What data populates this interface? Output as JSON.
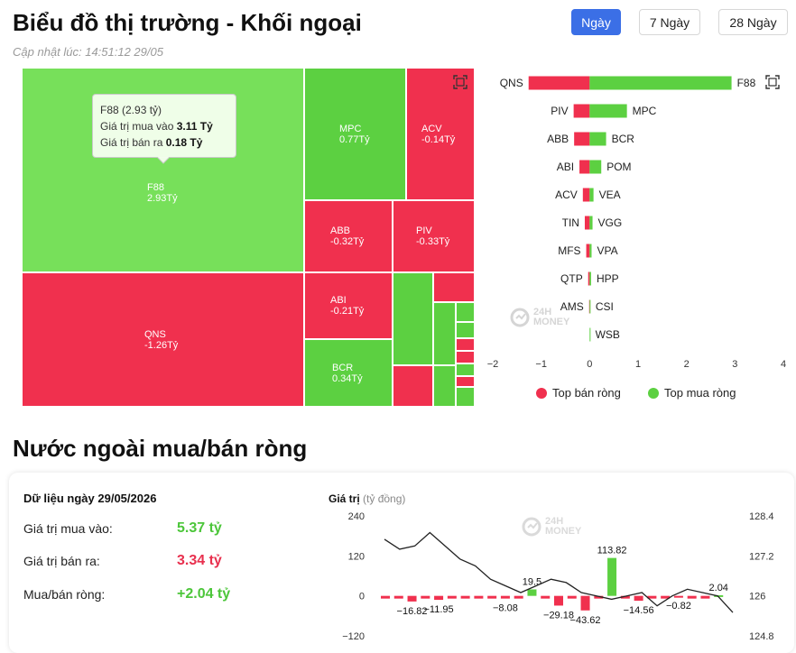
{
  "header": {
    "title": "Biểu đồ thị trường - Khối ngoại",
    "updated": "Cập nhật lúc: 14:51:12 29/05",
    "tabs": [
      {
        "label": "Ngày",
        "active": true
      },
      {
        "label": "7 Ngày",
        "active": false
      },
      {
        "label": "28 Ngày",
        "active": false
      }
    ]
  },
  "treemap": {
    "tiles": [
      {
        "ticker": "F88",
        "value": "2.93Tỷ"
      },
      {
        "ticker": "MPC",
        "value": "0.77Tỷ"
      },
      {
        "ticker": "ACV",
        "value": "-0.14Tỷ"
      },
      {
        "ticker": "ABB",
        "value": "-0.32Tỷ"
      },
      {
        "ticker": "PIV",
        "value": "-0.33Tỷ"
      },
      {
        "ticker": "QNS",
        "value": "-1.26Tỷ"
      },
      {
        "ticker": "ABI",
        "value": "-0.21Tỷ"
      },
      {
        "ticker": "BCR",
        "value": "0.34Tỷ"
      }
    ],
    "tooltip": {
      "title": "F88 (2.93 tỷ)",
      "buy_label": "Giá trị mua vào",
      "buy_value": "3.11 Tỷ",
      "sell_label": "Giá trị bán ra",
      "sell_value": "0.18 Tỷ"
    }
  },
  "chart_data": [
    {
      "type": "bar",
      "orientation": "horizontal",
      "sell_tickers": [
        "QNS",
        "PIV",
        "ABB",
        "ABI",
        "ACV",
        "TIN",
        "MFS",
        "QTP",
        "AMS",
        ""
      ],
      "sell_values": [
        -1.26,
        -0.33,
        -0.32,
        -0.21,
        -0.14,
        -0.1,
        -0.07,
        -0.03,
        -0.01,
        0
      ],
      "buy_tickers": [
        "F88",
        "MPC",
        "BCR",
        "POM",
        "VEA",
        "VGG",
        "VPA",
        "HPP",
        "CSI",
        "WSB"
      ],
      "buy_values": [
        2.93,
        0.77,
        0.34,
        0.24,
        0.08,
        0.06,
        0.04,
        0.03,
        0.01,
        0.005
      ],
      "x_ticks": [
        "−2",
        "−1",
        "0",
        "1",
        "2",
        "3",
        "4"
      ],
      "xlim": [
        -2,
        4
      ],
      "legend": [
        {
          "name": "Top bán ròng",
          "color": "#f0304e"
        },
        {
          "name": "Top mua ròng",
          "color": "#5cd041"
        }
      ],
      "legend_position": "bottom"
    },
    {
      "type": "bar",
      "ylabel": "Giá trị",
      "ylabel_unit": "(tỷ đồng)",
      "y_ticks": [
        "240",
        "120",
        "0",
        "−120"
      ],
      "ylim": [
        -120,
        240
      ],
      "y2_ticks": [
        "128.4",
        "127.2",
        "126",
        "124.8"
      ],
      "y2lim": [
        124.8,
        128.4
      ],
      "bars": [
        -16.82,
        -11.95,
        -8.08,
        19.5,
        -29.18,
        -43.62,
        113.82,
        -14.56,
        -0.82,
        2.04
      ],
      "bar_labels": [
        "−16.82",
        "−11.95",
        "−8.08",
        "19.5",
        "−29.18",
        "−43.62",
        "113.82",
        "−14.56",
        "−0.82",
        "2.04"
      ],
      "line": [
        127.7,
        127.4,
        127.5,
        127.9,
        127.5,
        127.1,
        126.9,
        126.5,
        126.3,
        126.1,
        126.3,
        126.5,
        126.4,
        126.1,
        126.0,
        125.9,
        126.0,
        126.1,
        125.7,
        126.0,
        126.2,
        126.1,
        126.0,
        125.5
      ]
    }
  ],
  "net_summary": {
    "title": "Nước ngoài mua/bán ròng",
    "date_label": "Dữ liệu ngày 29/05/2026",
    "buy_label": "Giá trị mua vào:",
    "buy_value": "5.37 tỷ",
    "sell_label": "Giá trị bán ra:",
    "sell_value": "3.34 tỷ",
    "net_label": "Mua/bán ròng:",
    "net_value": "+2.04 tỷ"
  },
  "watermark": {
    "line1": "24H",
    "line2": "MONEY"
  },
  "colors": {
    "red": "#f0304e",
    "green": "#5cd041",
    "light_green": "#77e05a",
    "accent": "#3b6fe6"
  }
}
